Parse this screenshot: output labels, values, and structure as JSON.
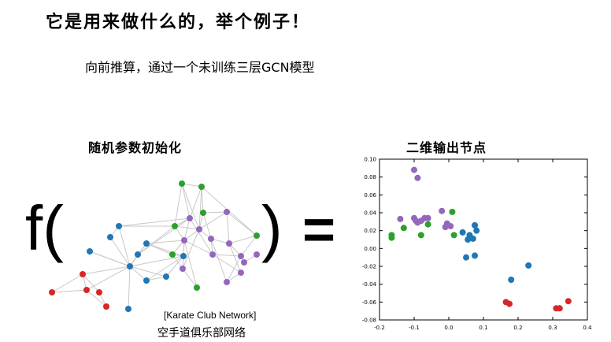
{
  "title": "它是用来做什么的，举个例子！",
  "subtitle": "向前推算，通过一个未训练三层GCN模型",
  "left_heading": "随机参数初始化",
  "right_heading": "二维输出节点",
  "func": {
    "f": "f(",
    "close": ")",
    "eq": "="
  },
  "graph": {
    "caption_en": "[Karate Club Network]",
    "caption_zh": "空手道俱乐部网络",
    "colors": {
      "red": "#d62728",
      "blue": "#1f77b4",
      "green": "#2ca02c",
      "purple": "#9467bd",
      "edge": "#c8c8c8"
    }
  },
  "chart_data": {
    "type": "scatter",
    "xlim": [
      -0.2,
      0.4
    ],
    "ylim": [
      -0.08,
      0.1
    ],
    "x_ticks": [
      "-0.2",
      "-0.1",
      "0.0",
      "0.1",
      "0.2",
      "0.3",
      "0.4"
    ],
    "y_ticks": [
      "0.10",
      "0.08",
      "0.06",
      "0.04",
      "0.02",
      "0.00",
      "-0.02",
      "-0.04",
      "-0.06",
      "-0.08"
    ],
    "grid": false,
    "series": [
      {
        "color": "purple",
        "points": [
          [
            -0.1,
            0.088
          ],
          [
            -0.09,
            0.079
          ],
          [
            -0.14,
            0.033
          ],
          [
            -0.1,
            0.034
          ],
          [
            -0.09,
            0.029
          ],
          [
            -0.08,
            0.031
          ],
          [
            -0.07,
            0.034
          ],
          [
            -0.06,
            0.034
          ],
          [
            -0.02,
            0.042
          ],
          [
            -0.005,
            0.028
          ],
          [
            0.005,
            0.025
          ],
          [
            -0.01,
            0.024
          ],
          [
            -0.095,
            0.031
          ]
        ]
      },
      {
        "color": "green",
        "points": [
          [
            -0.165,
            0.015
          ],
          [
            -0.165,
            0.012
          ],
          [
            -0.13,
            0.023
          ],
          [
            -0.08,
            0.015
          ],
          [
            -0.06,
            0.027
          ],
          [
            0.01,
            0.041
          ],
          [
            0.015,
            0.015
          ]
        ]
      },
      {
        "color": "blue",
        "points": [
          [
            0.04,
            0.018
          ],
          [
            0.06,
            0.015
          ],
          [
            0.075,
            0.026
          ],
          [
            0.08,
            0.02
          ],
          [
            0.07,
            0.011
          ],
          [
            0.055,
            0.01
          ],
          [
            0.075,
            -0.008
          ],
          [
            0.05,
            -0.01
          ],
          [
            0.18,
            -0.035
          ],
          [
            0.23,
            -0.019
          ]
        ]
      },
      {
        "color": "red",
        "points": [
          [
            0.165,
            -0.06
          ],
          [
            0.175,
            -0.062
          ],
          [
            0.31,
            -0.067
          ],
          [
            0.32,
            -0.067
          ],
          [
            0.345,
            -0.059
          ]
        ]
      }
    ]
  }
}
